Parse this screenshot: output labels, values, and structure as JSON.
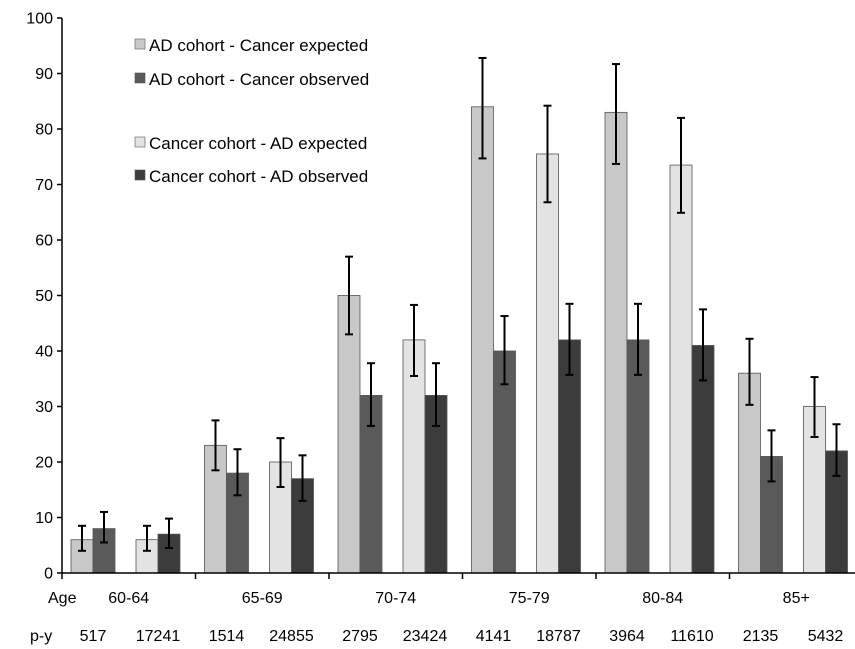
{
  "chart_data": {
    "type": "bar",
    "ylim": [
      0,
      100
    ],
    "yticks": [
      0,
      10,
      20,
      30,
      40,
      50,
      60,
      70,
      80,
      90,
      100
    ],
    "age_label": "Age",
    "py_label": "p-y",
    "age_groups": [
      "60-64",
      "65-69",
      "70-74",
      "75-79",
      "80-84",
      "85+"
    ],
    "bar_groups": [
      {
        "age_index": 0,
        "cohort": "AD",
        "py": "517",
        "expected": {
          "value": 6,
          "low": 4,
          "high": 8.5
        },
        "observed": {
          "value": 8,
          "low": 5.5,
          "high": 11
        }
      },
      {
        "age_index": 0,
        "cohort": "Cancer",
        "py": "17241",
        "expected": {
          "value": 6,
          "low": 4,
          "high": 8.5
        },
        "observed": {
          "value": 7,
          "low": 4.5,
          "high": 9.8
        }
      },
      {
        "age_index": 1,
        "cohort": "AD",
        "py": "1514",
        "expected": {
          "value": 23,
          "low": 18.5,
          "high": 27.5
        },
        "observed": {
          "value": 18,
          "low": 14,
          "high": 22.3
        }
      },
      {
        "age_index": 1,
        "cohort": "Cancer",
        "py": "24855",
        "expected": {
          "value": 20,
          "low": 15.5,
          "high": 24.3
        }
      },
      {
        "age_index": 1,
        "cohort": "Cancer",
        "py": "24855",
        "observed": {
          "value": 17,
          "low": 13,
          "high": 21.2
        }
      },
      {
        "age_index": 2,
        "cohort": "AD",
        "py": "2795",
        "expected": {
          "value": 50,
          "low": 43,
          "high": 57
        },
        "observed": {
          "value": 32,
          "low": 26.5,
          "high": 37.8
        }
      },
      {
        "age_index": 2,
        "cohort": "Cancer",
        "py": "23424",
        "expected": {
          "value": 42,
          "low": 35.5,
          "high": 48.3
        },
        "observed": {
          "value": 32,
          "low": 26.5,
          "high": 37.8
        }
      },
      {
        "age_index": 3,
        "cohort": "AD",
        "py": "4141",
        "expected": {
          "value": 84,
          "low": 74.7,
          "high": 92.8
        },
        "observed": {
          "value": 40,
          "low": 34,
          "high": 46.3
        }
      },
      {
        "age_index": 3,
        "cohort": "Cancer",
        "py": "18787",
        "expected": {
          "value": 75.5,
          "low": 66.8,
          "high": 84.2
        },
        "observed": {
          "value": 42,
          "low": 35.7,
          "high": 48.5
        }
      },
      {
        "age_index": 4,
        "cohort": "AD",
        "py": "3964",
        "expected": {
          "value": 83,
          "low": 73.7,
          "high": 91.7
        },
        "observed": {
          "value": 42,
          "low": 35.7,
          "high": 48.5
        }
      },
      {
        "age_index": 4,
        "cohort": "Cancer",
        "py": "11610",
        "expected": {
          "value": 73.5,
          "low": 64.9,
          "high": 82
        },
        "observed": {
          "value": 41,
          "low": 34.7,
          "high": 47.5
        }
      },
      {
        "age_index": 5,
        "cohort": "AD",
        "py": "2135",
        "expected": {
          "value": 36,
          "low": 30.3,
          "high": 42.2
        },
        "observed": {
          "value": 21,
          "low": 16.5,
          "high": 25.7
        }
      },
      {
        "age_index": 5,
        "cohort": "Cancer",
        "py": "5432",
        "expected": {
          "value": 30,
          "low": 24.5,
          "high": 35.3
        },
        "observed": {
          "value": 22,
          "low": 17.5,
          "high": 26.8
        }
      }
    ],
    "legend": [
      {
        "label": "AD cohort - Cancer expected",
        "color": "#c8c8c8"
      },
      {
        "label": "AD cohort - Cancer observed",
        "color": "#5a5a5a"
      },
      {
        "label": "Cancer cohort - AD expected",
        "color": "#e3e3e3"
      },
      {
        "label": "Cancer cohort - AD observed",
        "color": "#3c3c3c"
      }
    ],
    "colors": {
      "AD_expected": "#c8c8c8",
      "AD_observed": "#5a5a5a",
      "Cancer_expected": "#e3e3e3",
      "Cancer_observed": "#3c3c3c",
      "axis": "#000000",
      "bar_border": "#555555"
    },
    "grid": false,
    "legend_position": "top-left"
  }
}
